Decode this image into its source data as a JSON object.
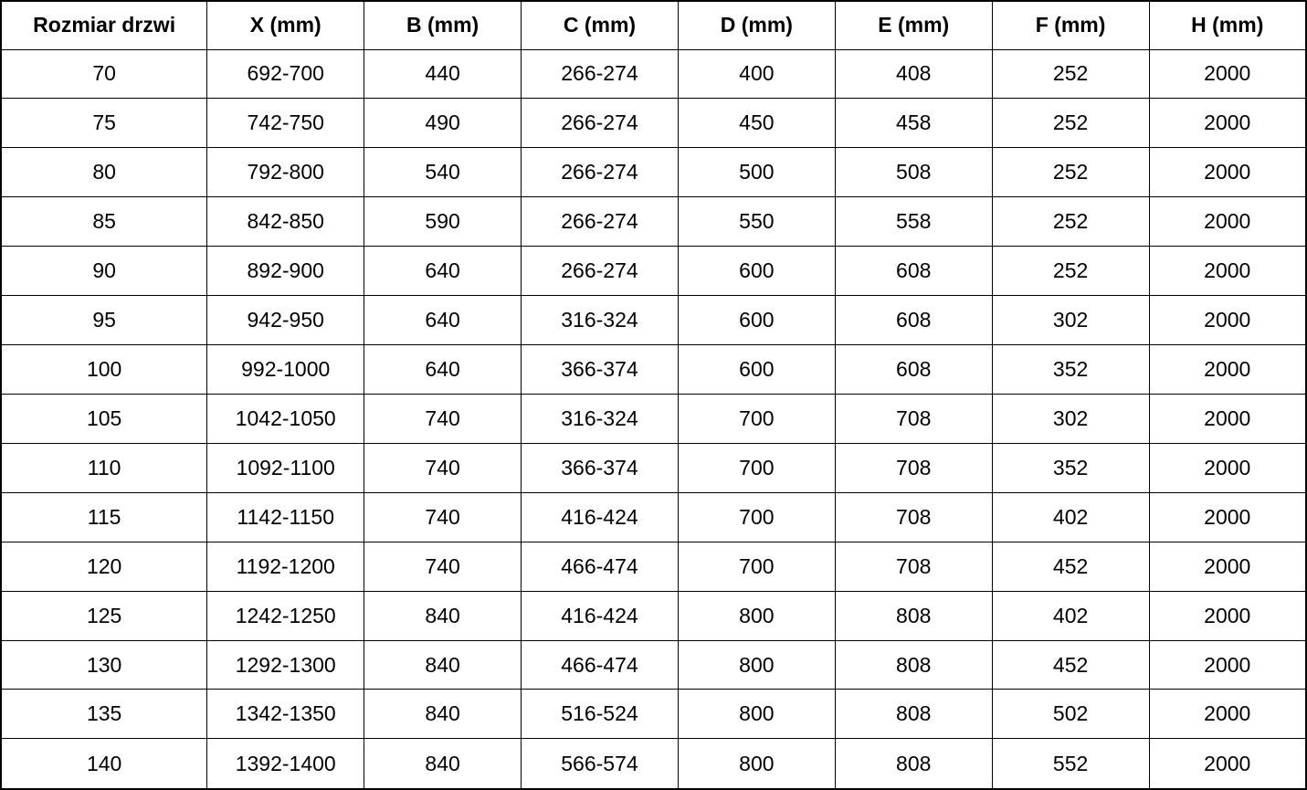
{
  "chart_data": {
    "type": "table",
    "title": "",
    "columns": [
      "Rozmiar drzwi",
      "X (mm)",
      "B (mm)",
      "C (mm)",
      "D (mm)",
      "E (mm)",
      "F (mm)",
      "H (mm)"
    ],
    "rows": [
      [
        "70",
        "692-700",
        "440",
        "266-274",
        "400",
        "408",
        "252",
        "2000"
      ],
      [
        "75",
        "742-750",
        "490",
        "266-274",
        "450",
        "458",
        "252",
        "2000"
      ],
      [
        "80",
        "792-800",
        "540",
        "266-274",
        "500",
        "508",
        "252",
        "2000"
      ],
      [
        "85",
        "842-850",
        "590",
        "266-274",
        "550",
        "558",
        "252",
        "2000"
      ],
      [
        "90",
        "892-900",
        "640",
        "266-274",
        "600",
        "608",
        "252",
        "2000"
      ],
      [
        "95",
        "942-950",
        "640",
        "316-324",
        "600",
        "608",
        "302",
        "2000"
      ],
      [
        "100",
        "992-1000",
        "640",
        "366-374",
        "600",
        "608",
        "352",
        "2000"
      ],
      [
        "105",
        "1042-1050",
        "740",
        "316-324",
        "700",
        "708",
        "302",
        "2000"
      ],
      [
        "110",
        "1092-1100",
        "740",
        "366-374",
        "700",
        "708",
        "352",
        "2000"
      ],
      [
        "115",
        "1142-1150",
        "740",
        "416-424",
        "700",
        "708",
        "402",
        "2000"
      ],
      [
        "120",
        "1192-1200",
        "740",
        "466-474",
        "700",
        "708",
        "452",
        "2000"
      ],
      [
        "125",
        "1242-1250",
        "840",
        "416-424",
        "800",
        "808",
        "402",
        "2000"
      ],
      [
        "130",
        "1292-1300",
        "840",
        "466-474",
        "800",
        "808",
        "452",
        "2000"
      ],
      [
        "135",
        "1342-1350",
        "840",
        "516-524",
        "800",
        "808",
        "502",
        "2000"
      ],
      [
        "140",
        "1392-1400",
        "840",
        "566-574",
        "800",
        "808",
        "552",
        "2000"
      ]
    ],
    "layout": {
      "grid": true,
      "header_bold": true,
      "text_align": "center"
    },
    "colors": {
      "border": "#000000",
      "text": "#000000",
      "background": "#ffffff"
    }
  }
}
